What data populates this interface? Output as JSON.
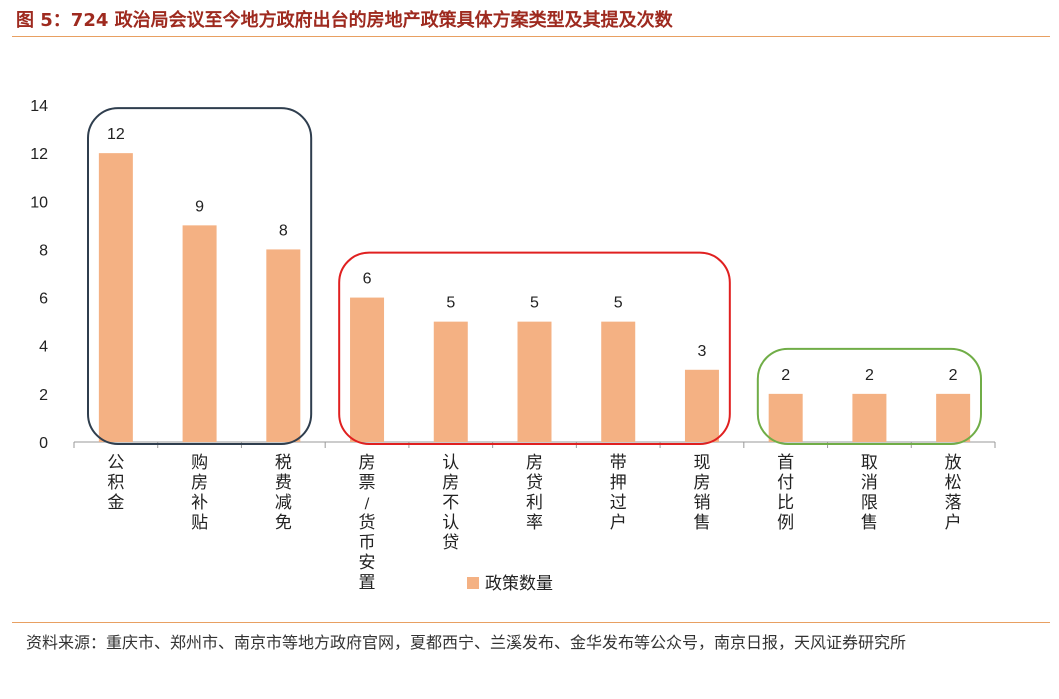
{
  "header": {
    "title": "图 5：724 政治局会议至今地方政府出台的房地产政策具体方案类型及其提及次数"
  },
  "footer": {
    "source": "资料来源：重庆市、郑州市、南京市等地方政府官网，夏都西宁、兰溪发布、金华发布等公众号，南京日报，天风证券研究所"
  },
  "chart_data": {
    "type": "bar",
    "categories": [
      "公积金",
      "购房补贴",
      "税费减免",
      "房票/货币安置",
      "认房不认贷",
      "房贷利率",
      "带押过户",
      "现房销售",
      "首付比例",
      "取消限售",
      "放松落户"
    ],
    "series": [
      {
        "name": "政策数量",
        "values": [
          12,
          9,
          8,
          6,
          5,
          5,
          5,
          3,
          2,
          2,
          2
        ],
        "color": "#F4B183"
      }
    ],
    "yticks": [
      0,
      2,
      4,
      6,
      8,
      10,
      12,
      14
    ],
    "ylim": [
      0,
      14
    ],
    "grid": false,
    "data_labels": true,
    "legend_position": "bottom",
    "groups": [
      {
        "from": 0,
        "to": 2,
        "color": "#2F3E4E"
      },
      {
        "from": 3,
        "to": 7,
        "color": "#E02020"
      },
      {
        "from": 8,
        "to": 10,
        "color": "#70AD47"
      }
    ]
  }
}
